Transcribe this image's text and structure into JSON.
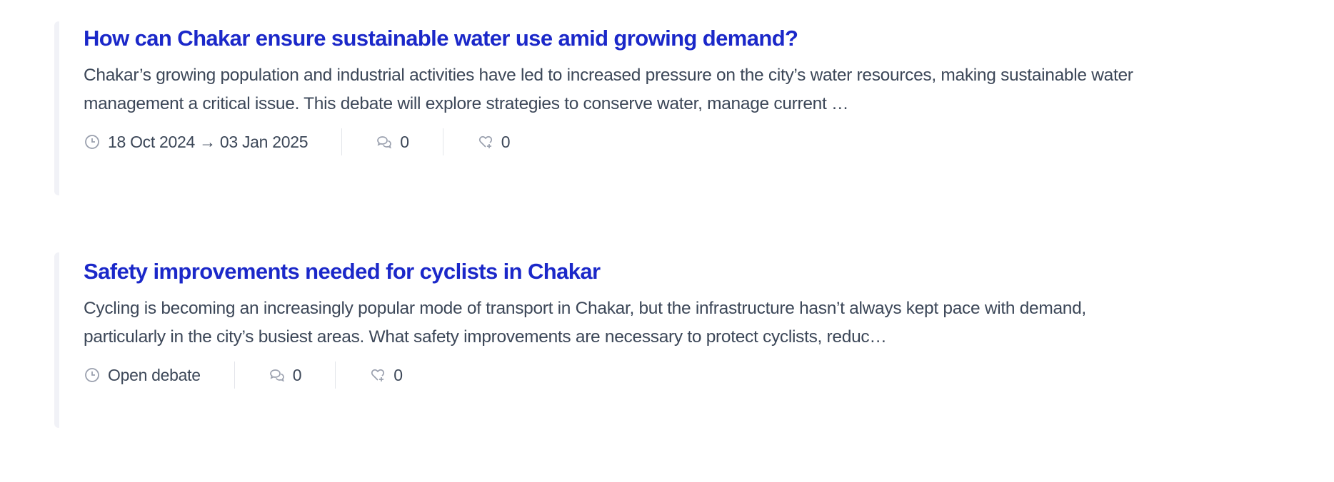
{
  "items": [
    {
      "title": "How can Chakar ensure sustainable water use amid growing demand?",
      "description": "Chakar’s growing population and industrial activities have led to increased pressure on the city’s water resources, making sustainable water management a critical issue. This debate will explore strategies to conserve water, manage current …",
      "date": "18 Oct 2024 → 03 Jan 2025",
      "comments": "0",
      "endorsements": "0",
      "icons": [
        "clock-icon",
        "comments-icon",
        "heart-plus-icon"
      ]
    },
    {
      "title": "Safety improvements needed for cyclists in Chakar",
      "description": "Cycling is becoming an increasingly popular mode of transport in Chakar, but the infrastructure hasn’t always kept pace with demand, particularly in the city’s busiest areas. What safety improvements are necessary to protect cyclists, reduc…",
      "date": "Open debate",
      "comments": "0",
      "endorsements": "0",
      "icons": [
        "clock-icon",
        "comments-icon",
        "heart-plus-icon"
      ]
    }
  ],
  "colors": {
    "title": "#1b28c9",
    "text": "#3c4758",
    "icon": "#9aa0ae",
    "border": "#f1f2f7"
  }
}
